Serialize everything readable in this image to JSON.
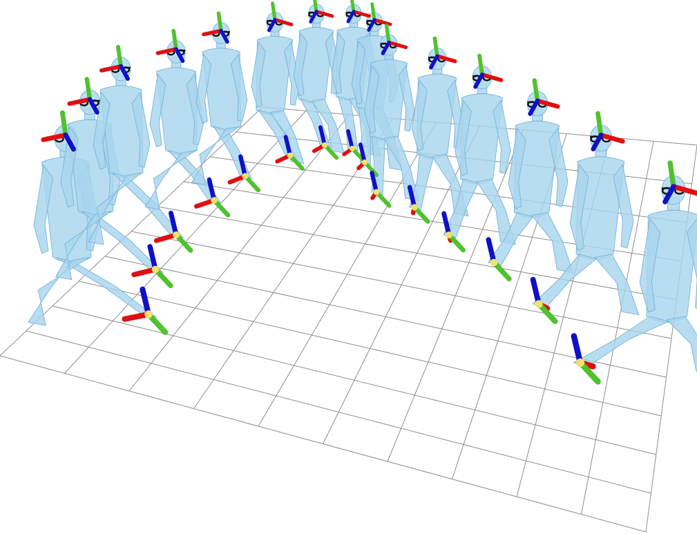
{
  "scene": {
    "figure_count": 18,
    "body_color": "#a8d5ee",
    "axis_colors": {
      "x": "#e01010",
      "y": "#4fc22e",
      "z": "#1010c8"
    },
    "origin_color": "#f0e36a",
    "floor": "grid"
  }
}
